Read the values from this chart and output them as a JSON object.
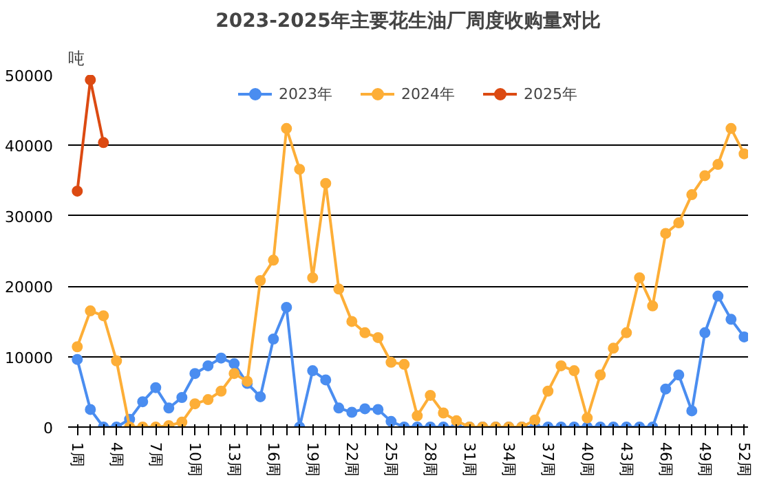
{
  "chart_data": {
    "type": "line",
    "title": "2023-2025年主要花生油厂周度收购量对比",
    "ylabel": "吨",
    "categories": [
      "1周",
      null,
      null,
      "4周",
      null,
      null,
      "7周",
      null,
      null,
      "10周",
      null,
      null,
      "13周",
      null,
      null,
      "16周",
      null,
      null,
      "19周",
      null,
      null,
      "22周",
      null,
      null,
      "25周",
      null,
      null,
      "28周",
      null,
      null,
      "31周",
      null,
      null,
      "34周",
      null,
      null,
      "37周",
      null,
      null,
      "40周",
      null,
      null,
      "43周",
      null,
      null,
      "46周",
      null,
      null,
      "49周",
      null,
      null,
      "52周"
    ],
    "series": [
      {
        "name": "2023年",
        "color": "#4a8df0",
        "values": [
          9600,
          2500,
          0,
          0,
          1100,
          3600,
          5600,
          2700,
          4200,
          7600,
          8700,
          9800,
          9000,
          6200,
          4300,
          12500,
          17000,
          0,
          8000,
          6700,
          2700,
          2100,
          2600,
          2500,
          800,
          0,
          0,
          0,
          0,
          0,
          0,
          0,
          0,
          0,
          0,
          0,
          0,
          0,
          0,
          0,
          0,
          0,
          0,
          0,
          0,
          5400,
          7400,
          2300,
          13400,
          18600,
          15300,
          12800
        ]
      },
      {
        "name": "2024年",
        "color": "#fdae37",
        "values": [
          11400,
          16500,
          15800,
          9400,
          0,
          0,
          0,
          200,
          700,
          3300,
          3900,
          5100,
          7600,
          6500,
          20800,
          23700,
          42400,
          36600,
          21200,
          34600,
          19600,
          15000,
          13400,
          12700,
          9200,
          8900,
          1600,
          4500,
          2000,
          900,
          0,
          0,
          0,
          0,
          0,
          1000,
          5100,
          8700,
          8000,
          1300,
          7400,
          11200,
          13400,
          21200,
          17200,
          27500,
          29000,
          33000,
          35700,
          37300,
          42400,
          38800
        ]
      },
      {
        "name": "2025年",
        "color": "#dc4a12",
        "values": [
          33500,
          49300,
          40400,
          null,
          null,
          null,
          null,
          null,
          null,
          null,
          null,
          null,
          null,
          null,
          null,
          null,
          null,
          null,
          null,
          null,
          null,
          null,
          null,
          null,
          null,
          null,
          null,
          null,
          null,
          null,
          null,
          null,
          null,
          null,
          null,
          null,
          null,
          null,
          null,
          null,
          null,
          null,
          null,
          null,
          null,
          null,
          null,
          null,
          null,
          null,
          null,
          null
        ]
      }
    ],
    "ylim": [
      0,
      50000
    ],
    "yticks": [
      0,
      10000,
      20000,
      30000,
      40000,
      50000
    ],
    "grid": "y",
    "legend": "top",
    "marker": "circle",
    "line_style": "solid"
  }
}
